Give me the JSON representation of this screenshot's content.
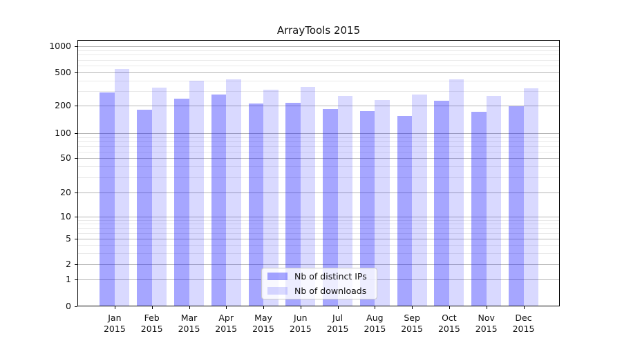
{
  "chart_data": {
    "type": "bar",
    "title": "ArrayTools 2015",
    "x": {
      "categories": [
        "Jan",
        "Feb",
        "Mar",
        "Apr",
        "May",
        "Jun",
        "Jul",
        "Aug",
        "Sep",
        "Oct",
        "Nov",
        "Dec"
      ],
      "year": "2015"
    },
    "y_axis": {
      "scale": "symlog",
      "range": [
        0,
        1000
      ],
      "ticks": [
        0,
        1,
        2,
        5,
        10,
        20,
        50,
        100,
        200,
        500,
        1000
      ],
      "minor_gridlines": [
        3,
        4,
        6,
        7,
        8,
        9,
        30,
        40,
        60,
        70,
        80,
        90,
        300,
        400,
        600,
        700,
        800,
        900
      ]
    },
    "series": [
      {
        "name": "Nb of distinct IPs",
        "color": "rgba(0,0,255,0.35)",
        "values": [
          290,
          180,
          240,
          270,
          210,
          215,
          185,
          175,
          155,
          230,
          170,
          198
        ]
      },
      {
        "name": "Nb of downloads",
        "color": "rgba(0,0,255,0.15)",
        "values": [
          550,
          330,
          400,
          415,
          310,
          335,
          260,
          235,
          270,
          410,
          260,
          325
        ]
      }
    ],
    "legend": {
      "position": "lower-center"
    },
    "grid": {
      "major_color": "#b5b5b5",
      "minor_color": "#e9e9e9"
    }
  }
}
